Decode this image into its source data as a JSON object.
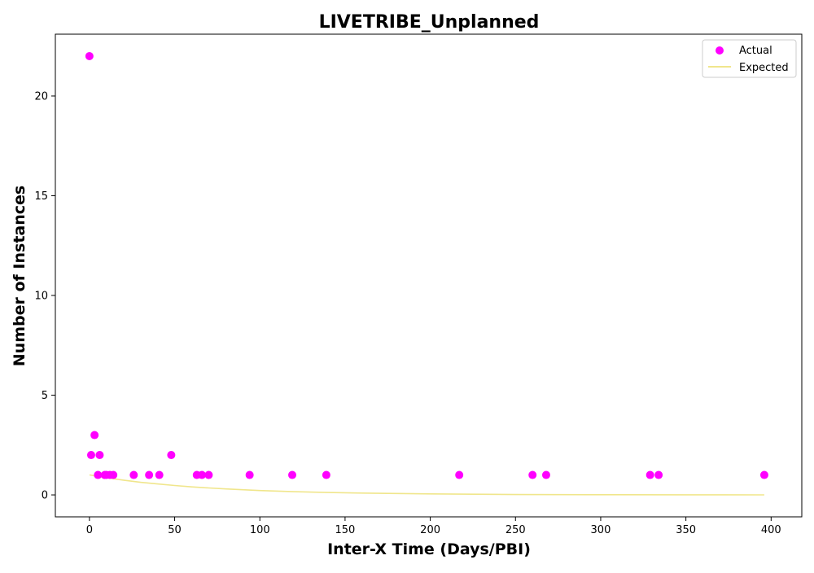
{
  "chart_data": {
    "type": "scatter",
    "title": "LIVETRIBE_Unplanned",
    "xlabel": "Inter-X Time (Days/PBI)",
    "ylabel": "Number of Instances",
    "xlim": [
      -20,
      418
    ],
    "ylim": [
      -1.1,
      23.1
    ],
    "x_ticks": [
      0,
      50,
      100,
      150,
      200,
      250,
      300,
      350,
      400
    ],
    "y_ticks": [
      0,
      5,
      10,
      15,
      20
    ],
    "grid": false,
    "legend": "top-right",
    "series": [
      {
        "name": "Actual",
        "kind": "scatter",
        "color": "#ff00ff",
        "points": [
          [
            0,
            22
          ],
          [
            1,
            2
          ],
          [
            3,
            3
          ],
          [
            5,
            1
          ],
          [
            6,
            2
          ],
          [
            9,
            1
          ],
          [
            10,
            1
          ],
          [
            12,
            1
          ],
          [
            14,
            1
          ],
          [
            26,
            1
          ],
          [
            35,
            1
          ],
          [
            41,
            1
          ],
          [
            48,
            2
          ],
          [
            63,
            1
          ],
          [
            66,
            1
          ],
          [
            70,
            1
          ],
          [
            94,
            1
          ],
          [
            119,
            1
          ],
          [
            139,
            1
          ],
          [
            217,
            1
          ],
          [
            260,
            1
          ],
          [
            268,
            1
          ],
          [
            329,
            1
          ],
          [
            334,
            1
          ],
          [
            396,
            1
          ]
        ]
      },
      {
        "name": "Expected",
        "kind": "line",
        "color": "#f0e68c",
        "points": [
          [
            0,
            1.0
          ],
          [
            5,
            0.93
          ],
          [
            10,
            0.86
          ],
          [
            20,
            0.74
          ],
          [
            30,
            0.63
          ],
          [
            40,
            0.55
          ],
          [
            50,
            0.47
          ],
          [
            60,
            0.4
          ],
          [
            70,
            0.35
          ],
          [
            80,
            0.3
          ],
          [
            100,
            0.22
          ],
          [
            120,
            0.16
          ],
          [
            140,
            0.12
          ],
          [
            160,
            0.09
          ],
          [
            180,
            0.07
          ],
          [
            200,
            0.05
          ],
          [
            250,
            0.02
          ],
          [
            300,
            0.01
          ],
          [
            350,
            0.005
          ],
          [
            396,
            0.002
          ]
        ]
      }
    ]
  }
}
